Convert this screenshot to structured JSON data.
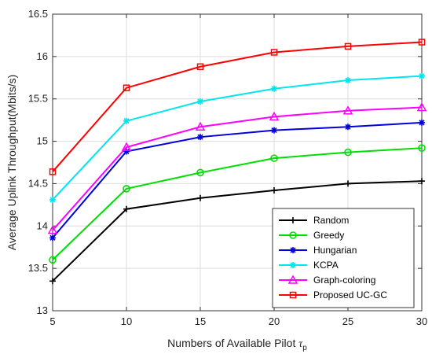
{
  "chart_data": {
    "type": "line",
    "xlabel": "Numbers of Available Pilot ",
    "xlabel_symbol": "τ",
    "xlabel_subscript": "p",
    "ylabel": "Average Uplink Throughput(Mbits/s)",
    "x": [
      5,
      10,
      15,
      20,
      25,
      30
    ],
    "xlim": [
      5,
      30
    ],
    "ylim": [
      13,
      16.5
    ],
    "xticks": [
      "5",
      "10",
      "15",
      "20",
      "25",
      "30"
    ],
    "yticks": [
      "13",
      "13.5",
      "14",
      "14.5",
      "15",
      "15.5",
      "16",
      "16.5"
    ],
    "grid": true,
    "legend_position": "bottom-right",
    "series": [
      {
        "name": "Random",
        "color": "#000000",
        "marker": "plus",
        "values": [
          13.35,
          14.2,
          14.33,
          14.42,
          14.5,
          14.53
        ]
      },
      {
        "name": "Greedy",
        "color": "#00dd00",
        "marker": "circle",
        "values": [
          13.6,
          14.44,
          14.63,
          14.8,
          14.87,
          14.92
        ]
      },
      {
        "name": "Hungarian",
        "color": "#0000dd",
        "marker": "star",
        "values": [
          13.86,
          14.88,
          15.05,
          15.13,
          15.17,
          15.22
        ]
      },
      {
        "name": "KCPA",
        "color": "#00e5ee",
        "marker": "star",
        "values": [
          14.31,
          15.24,
          15.47,
          15.62,
          15.72,
          15.77
        ]
      },
      {
        "name": "Graph-coloring",
        "color": "#ff00ff",
        "marker": "triangle",
        "values": [
          13.95,
          14.93,
          15.17,
          15.29,
          15.36,
          15.4
        ]
      },
      {
        "name": "Proposed UC-GC",
        "color": "#ff0000",
        "marker": "square",
        "values": [
          14.64,
          15.63,
          15.88,
          16.05,
          16.12,
          16.17
        ]
      }
    ]
  }
}
